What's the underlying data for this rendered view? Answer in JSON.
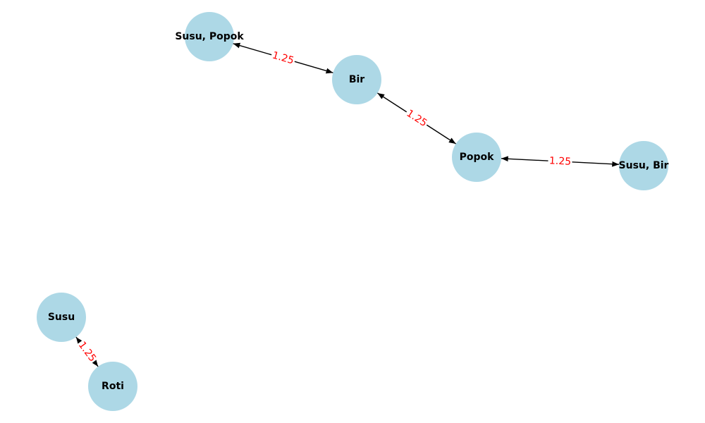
{
  "diagram": {
    "type": "network-graph",
    "colors": {
      "node_fill": "#add8e6",
      "node_text": "#000000",
      "edge": "#000000",
      "edge_label": "#ff0000"
    },
    "nodes": [
      {
        "id": "n1",
        "label": "Susu, Popok"
      },
      {
        "id": "n2",
        "label": "Bir"
      },
      {
        "id": "n3",
        "label": "Popok"
      },
      {
        "id": "n4",
        "label": "Susu, Bir"
      },
      {
        "id": "n5",
        "label": "Susu"
      },
      {
        "id": "n6",
        "label": "Roti"
      }
    ],
    "edges": [
      {
        "from": "n1",
        "to": "n2",
        "label": "1.25",
        "bidirectional": true
      },
      {
        "from": "n2",
        "to": "n3",
        "label": "1.25",
        "bidirectional": true
      },
      {
        "from": "n3",
        "to": "n4",
        "label": "1.25",
        "bidirectional": true
      },
      {
        "from": "n5",
        "to": "n6",
        "label": "1.25",
        "bidirectional": true
      }
    ]
  }
}
